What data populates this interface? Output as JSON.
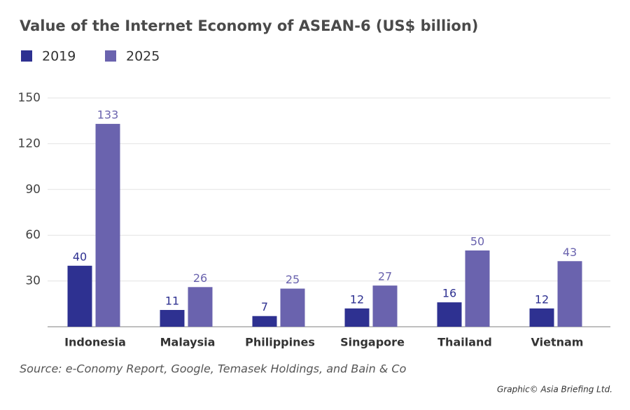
{
  "chart_data": {
    "type": "bar",
    "title": "Value of the Internet Economy of ASEAN-6 (US$ billion)",
    "categories": [
      "Indonesia",
      "Malaysia",
      "Philippines",
      "Singapore",
      "Thailand",
      "Vietnam"
    ],
    "series": [
      {
        "name": "2019",
        "color": "#2e3191",
        "values": [
          40,
          11,
          7,
          12,
          16,
          12
        ]
      },
      {
        "name": "2025",
        "color": "#6a63ae",
        "values": [
          133,
          26,
          25,
          27,
          50,
          43
        ]
      }
    ],
    "ylim": [
      0,
      150
    ],
    "yticks": [
      30,
      60,
      90,
      120,
      150
    ],
    "grid": true,
    "source": "Source: e-Conomy Report, Google, Temasek Holdings, and Bain & Co",
    "credit": "Graphic© Asia Briefing Ltd."
  }
}
